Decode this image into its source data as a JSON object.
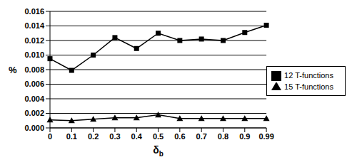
{
  "chart_data": {
    "type": "line",
    "x_label": "δb",
    "y_label": "%",
    "categories": [
      "0",
      "0.1",
      "0.2",
      "0.3",
      "0.4",
      "0.5",
      "0.6",
      "0.7",
      "0.8",
      "0.9",
      "0.99"
    ],
    "series": [
      {
        "name": "12 T-functions",
        "color": "#000000",
        "marker": "square",
        "values": [
          0.0095,
          0.0079,
          0.01,
          0.0124,
          0.0109,
          0.013,
          0.012,
          0.0122,
          0.012,
          0.0131,
          0.0141
        ]
      },
      {
        "name": "15 T-functions",
        "color": "#000000",
        "marker": "triangle",
        "values": [
          0.0011,
          0.001,
          0.0012,
          0.0014,
          0.0014,
          0.0018,
          0.0013,
          0.0013,
          0.0013,
          0.0013,
          0.0013
        ]
      }
    ],
    "ylim": [
      0,
      0.016
    ],
    "yticks": [
      {
        "value": 0,
        "label": "0.000"
      },
      {
        "value": 0.002,
        "label": "0.002"
      },
      {
        "value": 0.004,
        "label": "0.004"
      },
      {
        "value": 0.006,
        "label": "0.006"
      },
      {
        "value": 0.008,
        "label": "0.008"
      },
      {
        "value": 0.01,
        "label": "0.010"
      },
      {
        "value": 0.012,
        "label": "0.012"
      },
      {
        "value": 0.014,
        "label": "0.014"
      },
      {
        "value": 0.016,
        "label": "0.016"
      }
    ],
    "grid": true,
    "legend": "right"
  }
}
